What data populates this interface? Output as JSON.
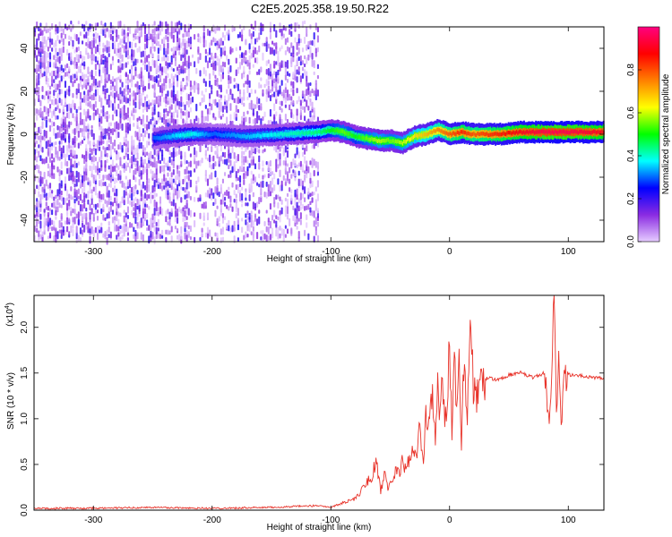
{
  "title": "C2E5.2025.358.19.50.R22",
  "colorbar": {
    "label": "Normalized spectral amplitude",
    "ticks": [
      "0.0",
      "0.2",
      "0.4",
      "0.6",
      "0.8"
    ],
    "tick_values": [
      0.0,
      0.2,
      0.4,
      0.6,
      0.8
    ],
    "range": [
      0,
      1
    ],
    "colors": [
      "#e6ccff",
      "#8a2be2",
      "#0000ff",
      "#00ffff",
      "#00ff00",
      "#ffff00",
      "#ff8000",
      "#ff0000",
      "#ff0080"
    ]
  },
  "chart_data": [
    {
      "type": "heatmap",
      "xlabel": "Height of straight line (km)",
      "ylabel": "Frequency (Hz)",
      "xlim": [
        -350,
        130
      ],
      "ylim": [
        -50,
        50
      ],
      "xticks": [
        "-300",
        "-200",
        "-100",
        "0",
        "100"
      ],
      "xtick_values": [
        -300,
        -200,
        -100,
        0,
        100
      ],
      "yticks": [
        "-40",
        "-20",
        "0",
        "20",
        "40"
      ],
      "ytick_values": [
        -40,
        -20,
        0,
        20,
        40
      ],
      "noise_region_x": [
        -350,
        -110
      ],
      "signal_ridge": {
        "x": [
          -250,
          -220,
          -200,
          -170,
          -140,
          -110,
          -100,
          -90,
          -80,
          -70,
          -60,
          -50,
          -40,
          -30,
          -20,
          -10,
          0,
          10,
          20,
          40,
          60,
          80,
          100,
          130
        ],
        "y": [
          -2,
          0,
          0,
          -1,
          0,
          1,
          2,
          1,
          -1,
          -2,
          -3,
          -3,
          -4,
          -1,
          0,
          2,
          0,
          1,
          0,
          0,
          1,
          1,
          1,
          1
        ],
        "amplitude": [
          0.3,
          0.4,
          0.3,
          0.35,
          0.4,
          0.45,
          0.5,
          0.55,
          0.5,
          0.55,
          0.6,
          0.55,
          0.6,
          0.65,
          0.7,
          0.75,
          0.8,
          0.85,
          0.8,
          0.85,
          0.9,
          0.95,
          0.95,
          0.9
        ]
      }
    },
    {
      "type": "line",
      "xlabel": "Height of straight line (km)",
      "ylabel": "SNR (10 * v/v)",
      "multiplier": "(x10",
      "multiplier_exp": "4",
      "multiplier_close": ")",
      "xlim": [
        -350,
        130
      ],
      "ylim": [
        0,
        2.35
      ],
      "xticks": [
        "-300",
        "-200",
        "-100",
        "0",
        "100"
      ],
      "xtick_values": [
        -300,
        -200,
        -100,
        0,
        100
      ],
      "yticks": [
        "0.0",
        "0.5",
        "1.0",
        "1.5",
        "2.0"
      ],
      "ytick_values": [
        0,
        0.5,
        1.0,
        1.5,
        2.0
      ],
      "color": "#e8332a",
      "series": [
        {
          "x": [
            -350,
            -300,
            -250,
            -200,
            -150,
            -110,
            -100,
            -90,
            -80,
            -75,
            -70,
            -66,
            -62,
            -58,
            -55,
            -52,
            -48,
            -45,
            -42,
            -40,
            -38,
            -35,
            -32,
            -28,
            -25,
            -22,
            -20,
            -18,
            -15,
            -12,
            -10,
            -8,
            -6,
            -4,
            -2,
            0,
            2,
            4,
            6,
            8,
            10,
            12,
            15,
            18,
            20,
            24,
            28,
            32,
            40,
            50,
            60,
            70,
            80,
            84,
            86,
            88,
            90,
            92,
            94,
            96,
            100,
            110,
            120,
            130
          ],
          "y": [
            0.02,
            0.02,
            0.03,
            0.02,
            0.03,
            0.05,
            0.03,
            0.08,
            0.12,
            0.2,
            0.3,
            0.35,
            0.55,
            0.2,
            0.4,
            0.25,
            0.3,
            0.5,
            0.35,
            0.6,
            0.45,
            0.5,
            0.7,
            0.55,
            0.9,
            0.6,
            1.1,
            0.8,
            1.3,
            0.7,
            1.6,
            1.0,
            1.45,
            0.9,
            1.2,
            1.75,
            0.8,
            1.8,
            1.0,
            1.9,
            0.7,
            1.6,
            1.1,
            1.95,
            1.35,
            1.25,
            1.4,
            1.45,
            1.42,
            1.48,
            1.5,
            1.45,
            1.5,
            1.0,
            1.55,
            2.32,
            1.1,
            1.6,
            0.9,
            1.45,
            1.48,
            1.47,
            1.45,
            1.45
          ]
        }
      ]
    }
  ]
}
